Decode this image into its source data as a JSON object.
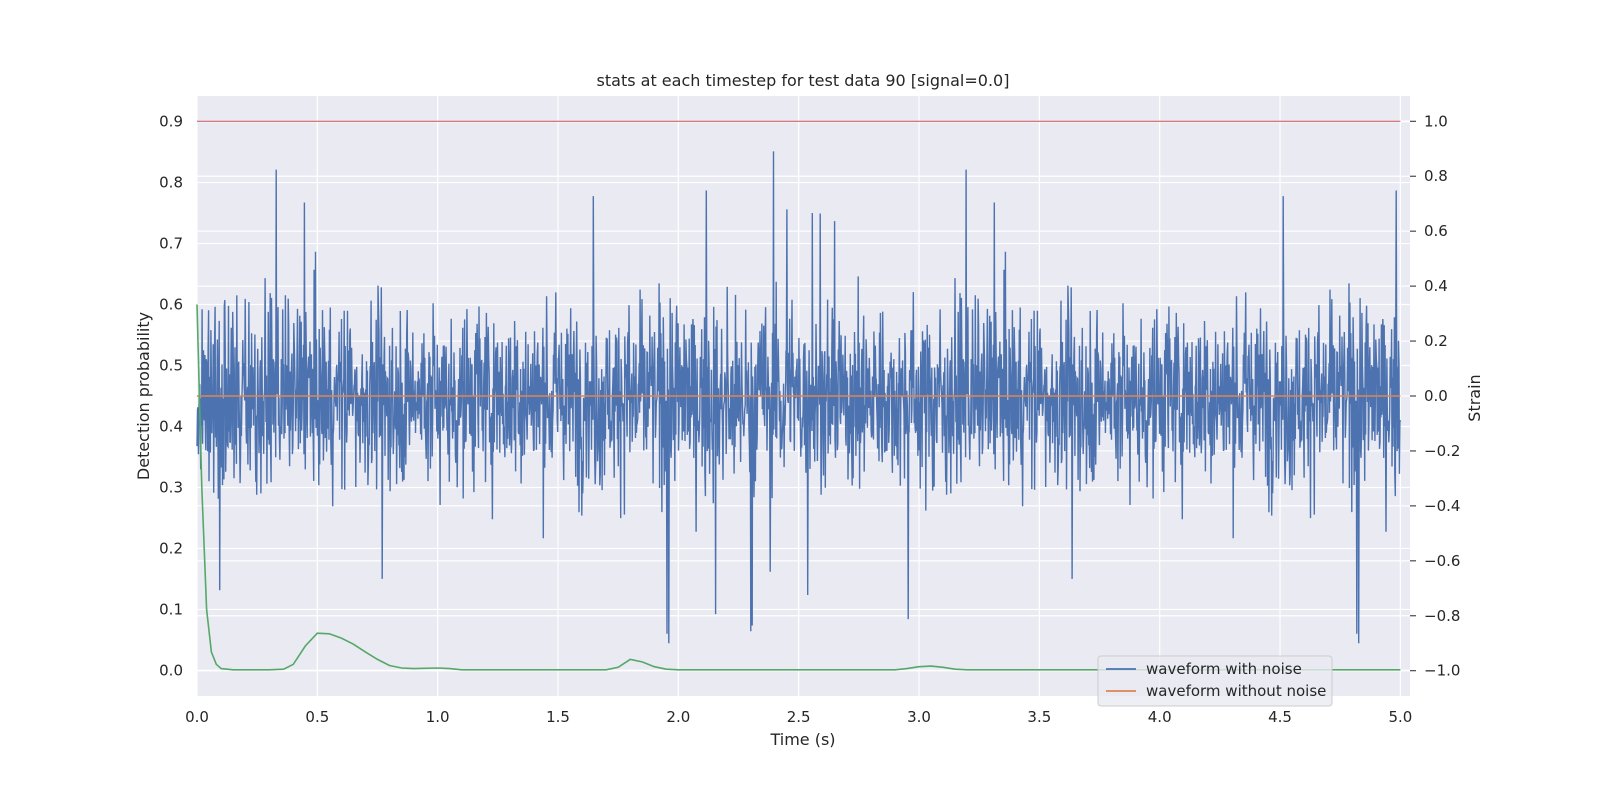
{
  "chart_data": {
    "type": "line",
    "title": "stats at each timestep for test data 90 [signal=0.0]",
    "xlabel": "Time (s)",
    "ylabel_left": "Detection probability",
    "ylabel_right": "Strain",
    "xlim": [
      0.0,
      5.04
    ],
    "ylim_left": [
      -0.042,
      0.942
    ],
    "ylim_right": [
      -1.092,
      1.092
    ],
    "x_ticks": [
      "0.0",
      "0.5",
      "1.0",
      "1.5",
      "2.0",
      "2.5",
      "3.0",
      "3.5",
      "4.0",
      "4.5",
      "5.0"
    ],
    "y_left_ticks": [
      "0.0",
      "0.1",
      "0.2",
      "0.3",
      "0.4",
      "0.5",
      "0.6",
      "0.7",
      "0.8",
      "0.9"
    ],
    "y_right_ticks": [
      "−1.0",
      "−0.8",
      "−0.6",
      "−0.4",
      "−0.2",
      "0.0",
      "0.2",
      "0.4",
      "0.6",
      "0.8",
      "1.0"
    ],
    "grid": true,
    "legend_position": "lower-right",
    "series": [
      {
        "name": "waveform with noise",
        "axis": "right",
        "color": "#4c72b0",
        "description_values": "dense noise, approx. amplitude ±0.55 strain, peaks near ±1.0",
        "amplitude": 0.55,
        "peak": 1.0
      },
      {
        "name": "waveform without noise",
        "axis": "right",
        "color": "#dd8452",
        "x": [
          0.0,
          5.0
        ],
        "y": [
          0.0,
          0.0
        ]
      },
      {
        "name": "",
        "axis": "left",
        "color": "#55a868",
        "x": [
          0.0,
          0.02,
          0.04,
          0.06,
          0.08,
          0.1,
          0.15,
          0.2,
          0.3,
          0.36,
          0.4,
          0.45,
          0.5,
          0.55,
          0.6,
          0.65,
          0.7,
          0.75,
          0.8,
          0.85,
          0.9,
          1.0,
          1.05,
          1.1,
          1.2,
          1.5,
          1.7,
          1.75,
          1.8,
          1.85,
          1.9,
          1.95,
          2.0,
          2.5,
          2.9,
          2.95,
          3.0,
          3.05,
          3.1,
          3.15,
          3.2,
          3.5,
          4.0,
          4.5,
          5.0
        ],
        "y": [
          0.6,
          0.3,
          0.1,
          0.03,
          0.01,
          0.003,
          0.001,
          0.001,
          0.001,
          0.002,
          0.01,
          0.04,
          0.061,
          0.06,
          0.053,
          0.043,
          0.03,
          0.018,
          0.008,
          0.004,
          0.003,
          0.004,
          0.003,
          0.001,
          0.001,
          0.001,
          0.001,
          0.005,
          0.018,
          0.014,
          0.006,
          0.002,
          0.001,
          0.001,
          0.001,
          0.003,
          0.006,
          0.007,
          0.005,
          0.002,
          0.001,
          0.001,
          0.001,
          0.001,
          0.001
        ]
      },
      {
        "name": "",
        "axis": "right",
        "color": "#c44e52",
        "x": [
          0.0,
          5.0
        ],
        "y": [
          1.0,
          1.0
        ]
      }
    ]
  }
}
